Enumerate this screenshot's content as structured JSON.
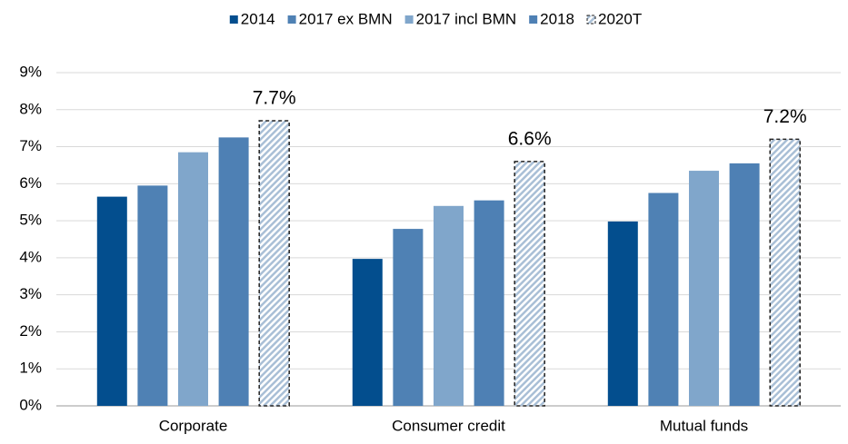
{
  "chart_data": {
    "type": "bar",
    "categories": [
      "Corporate",
      "Consumer credit",
      "Mutual funds"
    ],
    "series": [
      {
        "name": "2014",
        "color": "#034e8e",
        "values": [
          5.65,
          3.97,
          4.98
        ]
      },
      {
        "name": "2017 ex BMN",
        "color": "#4f81b4",
        "values": [
          5.95,
          4.78,
          5.75
        ]
      },
      {
        "name": "2017 incl BMN",
        "color": "#80a6cb",
        "values": [
          6.85,
          5.4,
          6.35
        ]
      },
      {
        "name": "2018",
        "color": "#4e80b4",
        "values": [
          7.25,
          5.55,
          6.55
        ]
      },
      {
        "name": "2020T",
        "color": "#a9bfd6",
        "pattern": "hatch",
        "values": [
          7.7,
          6.6,
          7.2
        ],
        "value_labels": [
          "7.7%",
          "6.6%",
          "7.2%"
        ]
      }
    ],
    "ylim": [
      0,
      9
    ],
    "yticks": [
      {
        "value": 0,
        "label": "0%"
      },
      {
        "value": 1,
        "label": "1%"
      },
      {
        "value": 2,
        "label": "2%"
      },
      {
        "value": 3,
        "label": "3%"
      },
      {
        "value": 4,
        "label": "4%"
      },
      {
        "value": 5,
        "label": "5%"
      },
      {
        "value": 6,
        "label": "6%"
      },
      {
        "value": 7,
        "label": "7%"
      },
      {
        "value": 8,
        "label": "8%"
      },
      {
        "value": 9,
        "label": "9%"
      }
    ],
    "grid": true,
    "legend": "top"
  }
}
